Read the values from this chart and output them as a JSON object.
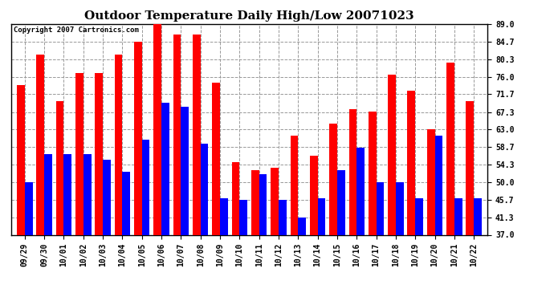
{
  "title": "Outdoor Temperature Daily High/Low 20071023",
  "copyright": "Copyright 2007 Cartronics.com",
  "dates": [
    "09/29",
    "09/30",
    "10/01",
    "10/02",
    "10/03",
    "10/04",
    "10/05",
    "10/06",
    "10/07",
    "10/08",
    "10/09",
    "10/10",
    "10/11",
    "10/12",
    "10/13",
    "10/14",
    "10/15",
    "10/16",
    "10/17",
    "10/18",
    "10/19",
    "10/20",
    "10/21",
    "10/22"
  ],
  "highs": [
    74.0,
    81.5,
    70.0,
    77.0,
    77.0,
    81.5,
    84.7,
    89.0,
    86.5,
    86.5,
    74.5,
    55.0,
    53.0,
    53.5,
    61.5,
    56.5,
    64.5,
    68.0,
    67.5,
    76.5,
    72.5,
    63.0,
    79.5,
    70.0
  ],
  "lows": [
    50.0,
    57.0,
    57.0,
    57.0,
    55.5,
    52.5,
    60.5,
    69.5,
    68.5,
    59.5,
    46.0,
    45.7,
    52.0,
    45.7,
    41.3,
    46.0,
    53.0,
    58.5,
    50.0,
    50.0,
    46.0,
    61.5,
    46.0,
    46.0
  ],
  "high_color": "#ff0000",
  "low_color": "#0000ff",
  "bg_color": "#ffffff",
  "plot_bg": "#ffffff",
  "grid_color": "#999999",
  "ylim_min": 37.0,
  "ylim_max": 89.0,
  "yticks": [
    37.0,
    41.3,
    45.7,
    50.0,
    54.3,
    58.7,
    63.0,
    67.3,
    71.7,
    76.0,
    80.3,
    84.7,
    89.0
  ],
  "bar_width": 0.4,
  "title_fontsize": 11,
  "tick_fontsize": 7,
  "copyright_fontsize": 6.5
}
